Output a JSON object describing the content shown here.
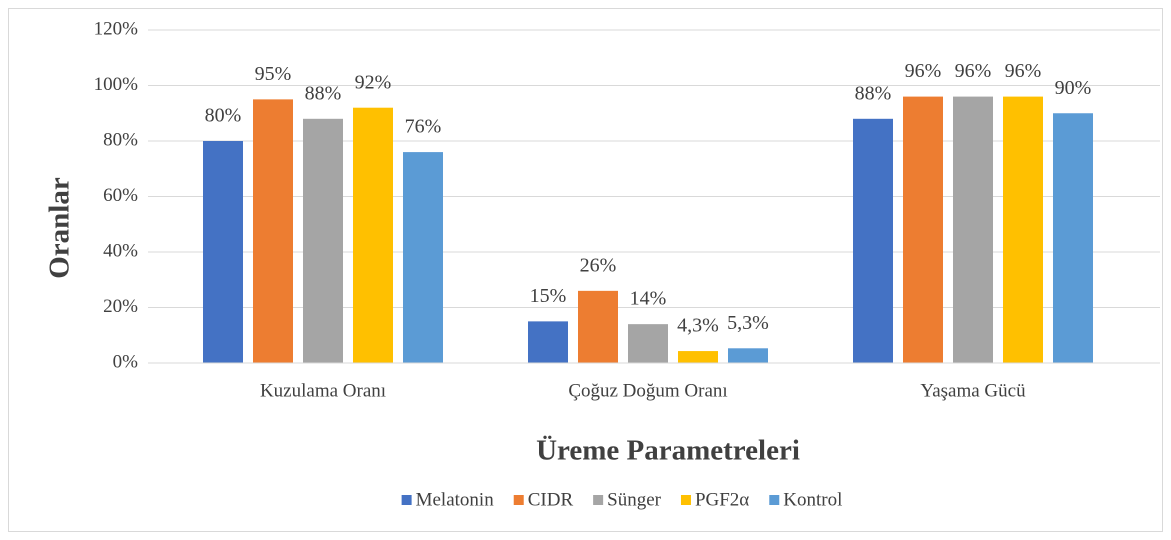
{
  "chart_data": {
    "type": "bar",
    "xlabel": "Üreme Parametreleri",
    "ylabel": "Oranlar",
    "categories": [
      "Kuzulama Oranı",
      "Çoğuz Doğum Oranı",
      "Yaşama Gücü"
    ],
    "series": [
      {
        "name": "Melatonin",
        "color": "#4472c4",
        "values": [
          80,
          15,
          88
        ],
        "value_labels": [
          "80%",
          "15%",
          "88%"
        ]
      },
      {
        "name": "CIDR",
        "color": "#ed7d31",
        "values": [
          95,
          26,
          96
        ],
        "value_labels": [
          "95%",
          "26%",
          "96%"
        ]
      },
      {
        "name": "Sünger",
        "color": "#a5a5a5",
        "values": [
          88,
          14,
          96
        ],
        "value_labels": [
          "88%",
          "14%",
          "96%"
        ]
      },
      {
        "name": "PGF2α",
        "color": "#ffc000",
        "values": [
          92,
          4.3,
          96
        ],
        "value_labels": [
          "92%",
          "4,3%",
          "96%"
        ]
      },
      {
        "name": "Kontrol",
        "color": "#5b9bd5",
        "values": [
          76,
          5.3,
          90
        ],
        "value_labels": [
          "76%",
          "5,3%",
          "90%"
        ]
      }
    ],
    "ylim": [
      0,
      120
    ],
    "yticks": [
      {
        "value": 0,
        "label": "0%"
      },
      {
        "value": 20,
        "label": "20%"
      },
      {
        "value": 40,
        "label": "40%"
      },
      {
        "value": 60,
        "label": "60%"
      },
      {
        "value": 80,
        "label": "80%"
      },
      {
        "value": 100,
        "label": "100%"
      },
      {
        "value": 120,
        "label": "120%"
      }
    ],
    "grid": true,
    "legend": "bottom"
  }
}
